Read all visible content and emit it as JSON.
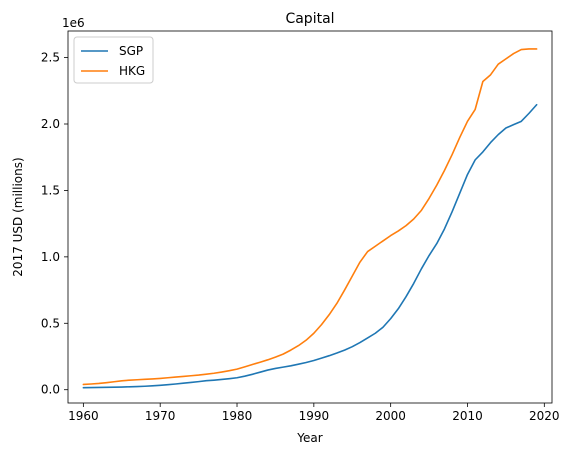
{
  "chart_data": {
    "type": "line",
    "title": "Capital",
    "xlabel": "Year",
    "ylabel": "2017 USD (millions)",
    "y_offset_label": "1e6",
    "xlim": [
      1958,
      2021
    ],
    "ylim": [
      -0.1,
      2.7
    ],
    "x_ticks": [
      1960,
      1970,
      1980,
      1990,
      2000,
      2010,
      2020
    ],
    "x_tick_labels": [
      "1960",
      "1970",
      "1980",
      "1990",
      "2000",
      "2010",
      "2020"
    ],
    "y_ticks": [
      0.0,
      0.5,
      1.0,
      1.5,
      2.0,
      2.5
    ],
    "y_tick_labels": [
      "0.0",
      "0.5",
      "1.0",
      "1.5",
      "2.0",
      "2.5"
    ],
    "grid": false,
    "legend_position": "top-left",
    "x": [
      1960,
      1961,
      1962,
      1963,
      1964,
      1965,
      1966,
      1967,
      1968,
      1969,
      1970,
      1971,
      1972,
      1973,
      1974,
      1975,
      1976,
      1977,
      1978,
      1979,
      1980,
      1981,
      1982,
      1983,
      1984,
      1985,
      1986,
      1987,
      1988,
      1989,
      1990,
      1991,
      1992,
      1993,
      1994,
      1995,
      1996,
      1997,
      1998,
      1999,
      2000,
      2001,
      2002,
      2003,
      2004,
      2005,
      2006,
      2007,
      2008,
      2009,
      2010,
      2011,
      2012,
      2013,
      2014,
      2015,
      2016,
      2017,
      2018,
      2019
    ],
    "series": [
      {
        "name": "SGP",
        "color": "#1f77b4",
        "values": [
          0.015,
          0.016,
          0.017,
          0.018,
          0.019,
          0.02,
          0.022,
          0.024,
          0.026,
          0.029,
          0.033,
          0.038,
          0.043,
          0.049,
          0.055,
          0.061,
          0.068,
          0.072,
          0.077,
          0.083,
          0.09,
          0.102,
          0.116,
          0.132,
          0.148,
          0.16,
          0.17,
          0.18,
          0.192,
          0.205,
          0.22,
          0.238,
          0.256,
          0.276,
          0.298,
          0.324,
          0.355,
          0.39,
          0.425,
          0.47,
          0.535,
          0.61,
          0.7,
          0.8,
          0.91,
          1.01,
          1.1,
          1.21,
          1.34,
          1.48,
          1.62,
          1.73,
          1.79,
          1.86,
          1.92,
          1.97,
          1.995,
          2.02,
          2.08,
          2.145
        ]
      },
      {
        "name": "HKG",
        "color": "#ff7f0e",
        "values": [
          0.04,
          0.043,
          0.047,
          0.053,
          0.06,
          0.067,
          0.072,
          0.075,
          0.078,
          0.081,
          0.085,
          0.09,
          0.095,
          0.1,
          0.105,
          0.11,
          0.117,
          0.124,
          0.133,
          0.143,
          0.155,
          0.172,
          0.19,
          0.207,
          0.225,
          0.245,
          0.268,
          0.298,
          0.332,
          0.373,
          0.425,
          0.49,
          0.565,
          0.65,
          0.75,
          0.855,
          0.96,
          1.04,
          1.08,
          1.12,
          1.16,
          1.195,
          1.235,
          1.285,
          1.35,
          1.44,
          1.54,
          1.65,
          1.77,
          1.9,
          2.02,
          2.11,
          2.32,
          2.37,
          2.45,
          2.49,
          2.53,
          2.56,
          2.565,
          2.565
        ]
      }
    ]
  }
}
